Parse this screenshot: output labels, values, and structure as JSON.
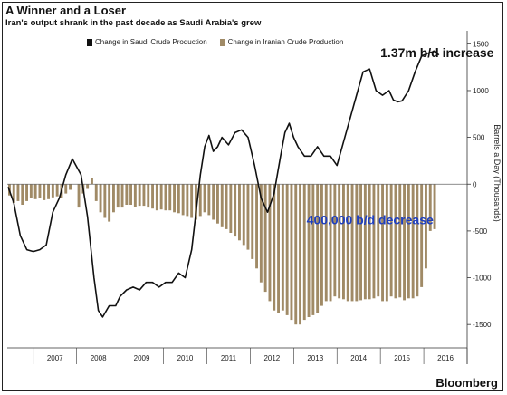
{
  "header": {
    "title": "A Winner and a Loser",
    "subtitle": "Iran's output shrank in the past decade as Saudi Arabia's grew"
  },
  "brand": "Bloomberg",
  "colors": {
    "saudi": "#111111",
    "iran": "#a08a66",
    "frame": "#222222",
    "grid": "#dddddd",
    "annotation_iran": "#1f3fbf"
  },
  "chart_data": {
    "type": "line",
    "title": "A Winner and a Loser",
    "subtitle": "Iran's output shrank in the past decade as Saudi Arabia's grew",
    "ylabel": "Barrels a Day (Thousands)",
    "ylim": [
      -1750,
      1600
    ],
    "yticks": [
      -1500,
      -1000,
      -500,
      0,
      500,
      1000,
      1500
    ],
    "ytick_labels": [
      "-1500",
      "-1000",
      "-500",
      "0",
      "500",
      "1000",
      "1500"
    ],
    "xlim": [
      2006.4,
      2017.0
    ],
    "xticks": [
      "2007",
      "2008",
      "2009",
      "2010",
      "2011",
      "2012",
      "2013",
      "2014",
      "2015",
      "2016"
    ],
    "legend": [
      "Change in Saudi Crude Production",
      "Change in Iranian Crude Production"
    ],
    "legend_position": "top-left",
    "series": [
      {
        "name": "Change in Saudi Crude Production",
        "type": "line",
        "x": [
          2006.42,
          2006.55,
          2006.7,
          2006.85,
          2007.0,
          2007.15,
          2007.3,
          2007.45,
          2007.6,
          2007.75,
          2007.9,
          2008.1,
          2008.25,
          2008.4,
          2008.5,
          2008.6,
          2008.75,
          2008.9,
          2009.0,
          2009.15,
          2009.3,
          2009.45,
          2009.6,
          2009.75,
          2009.9,
          2010.05,
          2010.2,
          2010.35,
          2010.5,
          2010.65,
          2010.75,
          2010.85,
          2010.95,
          2011.05,
          2011.15,
          2011.25,
          2011.35,
          2011.5,
          2011.65,
          2011.8,
          2011.95,
          2012.1,
          2012.25,
          2012.4,
          2012.55,
          2012.7,
          2012.8,
          2012.9,
          2013.0,
          2013.1,
          2013.25,
          2013.4,
          2013.55,
          2013.7,
          2013.85,
          2014.0,
          2014.15,
          2014.3,
          2014.45,
          2014.6,
          2014.75,
          2014.9,
          2015.05,
          2015.2,
          2015.3,
          2015.4,
          2015.5,
          2015.65,
          2015.8,
          2015.95,
          2016.1,
          2016.25,
          2016.35
        ],
        "values": [
          -30,
          -200,
          -550,
          -700,
          -720,
          -700,
          -650,
          -300,
          -150,
          100,
          270,
          100,
          -350,
          -1000,
          -1350,
          -1420,
          -1300,
          -1300,
          -1200,
          -1130,
          -1100,
          -1130,
          -1050,
          -1050,
          -1100,
          -1050,
          -1050,
          -950,
          -1000,
          -700,
          -300,
          100,
          400,
          520,
          350,
          400,
          500,
          420,
          550,
          580,
          500,
          200,
          -150,
          -300,
          -100,
          300,
          550,
          650,
          500,
          400,
          300,
          300,
          400,
          300,
          300,
          200,
          450,
          700,
          950,
          1200,
          1230,
          1000,
          950,
          1000,
          900,
          880,
          890,
          1000,
          1200,
          1370,
          1400,
          1420,
          1380
        ]
      },
      {
        "name": "Change in Iranian Crude Production",
        "type": "bar",
        "x": [
          2006.45,
          2006.55,
          2006.65,
          2006.75,
          2006.85,
          2006.95,
          2007.05,
          2007.15,
          2007.25,
          2007.35,
          2007.45,
          2007.55,
          2007.65,
          2007.75,
          2007.85,
          2007.95,
          2008.05,
          2008.15,
          2008.25,
          2008.35,
          2008.45,
          2008.55,
          2008.65,
          2008.75,
          2008.85,
          2008.95,
          2009.05,
          2009.15,
          2009.25,
          2009.35,
          2009.45,
          2009.55,
          2009.65,
          2009.75,
          2009.85,
          2009.95,
          2010.05,
          2010.15,
          2010.25,
          2010.35,
          2010.45,
          2010.55,
          2010.65,
          2010.75,
          2010.85,
          2010.95,
          2011.05,
          2011.15,
          2011.25,
          2011.35,
          2011.45,
          2011.55,
          2011.65,
          2011.75,
          2011.85,
          2011.95,
          2012.05,
          2012.15,
          2012.25,
          2012.35,
          2012.45,
          2012.55,
          2012.65,
          2012.75,
          2012.85,
          2012.95,
          2013.05,
          2013.15,
          2013.25,
          2013.35,
          2013.45,
          2013.55,
          2013.65,
          2013.75,
          2013.85,
          2013.95,
          2014.05,
          2014.15,
          2014.25,
          2014.35,
          2014.45,
          2014.55,
          2014.65,
          2014.75,
          2014.85,
          2014.95,
          2015.05,
          2015.15,
          2015.25,
          2015.35,
          2015.45,
          2015.55,
          2015.65,
          2015.75,
          2015.85,
          2015.95,
          2016.05,
          2016.15,
          2016.25
        ],
        "values": [
          -120,
          -200,
          -180,
          -220,
          -180,
          -150,
          -160,
          -150,
          -170,
          -160,
          -140,
          -130,
          -150,
          -100,
          -60,
          0,
          -250,
          -100,
          -50,
          70,
          -180,
          -300,
          -360,
          -400,
          -300,
          -250,
          -250,
          -220,
          -220,
          -240,
          -230,
          -230,
          -250,
          -260,
          -280,
          -270,
          -280,
          -280,
          -300,
          -310,
          -330,
          -340,
          -360,
          -380,
          -340,
          -300,
          -330,
          -380,
          -420,
          -460,
          -480,
          -520,
          -560,
          -600,
          -650,
          -700,
          -800,
          -900,
          -1050,
          -1150,
          -1250,
          -1350,
          -1380,
          -1350,
          -1400,
          -1450,
          -1500,
          -1500,
          -1450,
          -1420,
          -1400,
          -1380,
          -1300,
          -1250,
          -1250,
          -1200,
          -1220,
          -1230,
          -1250,
          -1250,
          -1250,
          -1240,
          -1230,
          -1230,
          -1220,
          -1200,
          -1250,
          -1250,
          -1200,
          -1220,
          -1210,
          -1240,
          -1220,
          -1220,
          -1200,
          -1100,
          -900,
          -500,
          -480
        ]
      }
    ],
    "annotations": [
      {
        "text": "1.37m b/d increase",
        "x": 2015.0,
        "y": 1360,
        "color": "#111111"
      },
      {
        "text": "400,000 b/d decrease",
        "x": 2013.3,
        "y": -430,
        "color": "#1f3fbf"
      }
    ],
    "grid": false,
    "zero_line": true
  }
}
